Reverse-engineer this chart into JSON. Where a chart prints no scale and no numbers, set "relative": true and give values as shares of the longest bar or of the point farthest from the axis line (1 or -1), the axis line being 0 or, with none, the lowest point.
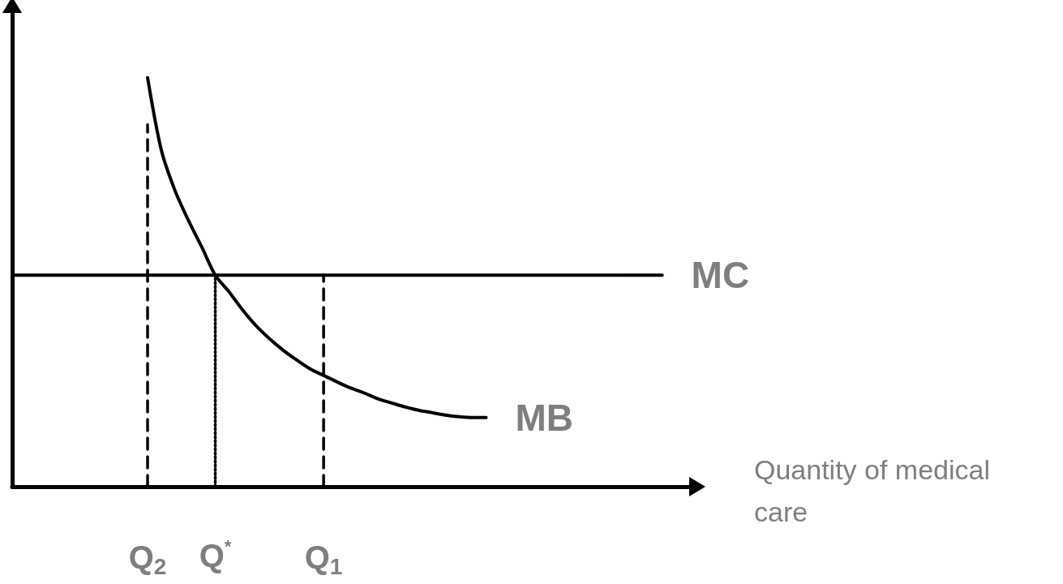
{
  "chart_data": {
    "type": "line",
    "relative": true,
    "xlabel": "Quantity of medical care",
    "marker": "none",
    "categories": [
      null,
      null,
      null,
      null,
      null,
      null,
      null,
      null,
      null,
      null,
      "Q$_{2}$",
      null,
      null,
      null,
      null,
      "Q$^{*}$",
      null,
      null,
      null,
      null,
      null,
      null,
      null,
      "Q$_{1}$",
      null,
      null,
      null,
      null,
      null,
      null,
      null,
      null,
      null,
      null,
      null,
      null,
      null,
      null,
      null,
      null,
      null,
      null,
      null,
      null,
      null,
      null,
      null,
      null,
      null,
      null,
      null
    ],
    "series": [
      {
        "name": "MC",
        "color": "#000000",
        "line_style": "solid",
        "values": [
          0.517,
          0.517,
          0.517,
          0.517,
          0.517,
          0.517,
          0.517,
          0.517,
          0.517,
          0.517,
          0.517,
          0.517,
          0.517,
          0.517,
          0.517,
          0.517,
          0.517,
          0.517,
          0.517,
          0.517,
          0.517,
          0.517,
          0.517,
          0.517,
          0.517,
          0.517,
          0.517,
          0.517,
          0.517,
          0.517,
          0.517,
          0.517,
          0.517,
          0.517,
          0.517,
          0.517,
          0.517,
          0.517,
          0.517,
          0.517,
          0.517,
          0.517,
          0.517,
          0.517,
          0.517,
          0.517,
          0.517,
          0.517,
          0.517,
          null,
          null
        ]
      },
      {
        "name": "MB",
        "color": "#000000",
        "line_style": "solid",
        "values": [
          null,
          null,
          null,
          null,
          null,
          null,
          null,
          null,
          null,
          null,
          1,
          0.825,
          0.726,
          0.652,
          0.586,
          0.517,
          0.477,
          0.433,
          0.394,
          0.362,
          0.334,
          0.31,
          0.288,
          0.272,
          0.256,
          0.241,
          0.229,
          0.215,
          0.205,
          0.195,
          0.187,
          0.181,
          0.175,
          0.171,
          0.169,
          0.169,
          null,
          null,
          null,
          null,
          null,
          null,
          null,
          null,
          null,
          null,
          null,
          null,
          null,
          null,
          null
        ]
      },
      {
        "color": "#000000",
        "line_style": "dashed",
        "x": [
          "Q$_{2}$",
          "Q$_{2}$"
        ],
        "values": [
          0,
          0.885
        ]
      },
      {
        "color": "#000000",
        "line_style": "dotted",
        "x": [
          "Q$^{*}$",
          "Q$^{*}$"
        ],
        "values": [
          0,
          0.517
        ]
      },
      {
        "color": "#000000",
        "line_style": "dashed",
        "x": [
          "Q$_{1}$",
          "Q$_{1}$"
        ],
        "values": [
          0,
          0.517
        ]
      }
    ]
  }
}
